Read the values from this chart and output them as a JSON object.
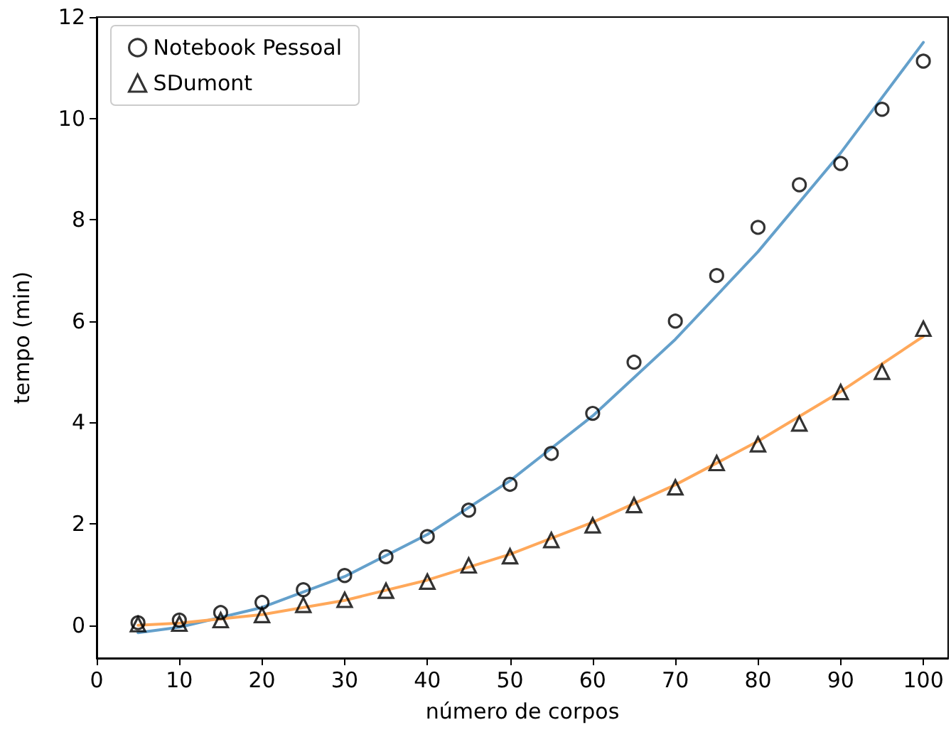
{
  "chart_data": {
    "type": "scatter",
    "xlabel": "número de corpos",
    "ylabel": "tempo (min)",
    "xlim": [
      0,
      103
    ],
    "ylim": [
      -0.65,
      12
    ],
    "xticks": [
      0,
      10,
      20,
      30,
      40,
      50,
      60,
      70,
      80,
      90,
      100
    ],
    "yticks": [
      0,
      2,
      4,
      6,
      8,
      10,
      12
    ],
    "grid": false,
    "legend": "top left",
    "x": [
      5,
      10,
      15,
      20,
      25,
      30,
      35,
      40,
      45,
      50,
      55,
      60,
      65,
      70,
      75,
      80,
      85,
      90,
      95,
      100
    ],
    "series": [
      {
        "name": "Notebook Pessoal",
        "marker": "circle",
        "color": "#000000",
        "values": [
          0.05,
          0.1,
          0.25,
          0.45,
          0.7,
          0.98,
          1.35,
          1.75,
          2.27,
          2.78,
          3.39,
          4.18,
          5.19,
          6.0,
          6.9,
          7.85,
          8.69,
          9.11,
          10.18,
          11.13
        ]
      },
      {
        "name": "SDumont",
        "marker": "triangle",
        "color": "#000000",
        "values": [
          0.02,
          0.03,
          0.1,
          0.2,
          0.4,
          0.5,
          0.68,
          0.86,
          1.18,
          1.36,
          1.68,
          1.97,
          2.37,
          2.72,
          3.2,
          3.57,
          3.98,
          4.6,
          5.0,
          5.85
        ]
      },
      {
        "type": "line",
        "marker": "none",
        "color": "#64a0cb",
        "x": [
          5,
          10,
          20,
          30,
          40,
          50,
          60,
          70,
          80,
          90,
          100
        ],
        "values": [
          -0.15,
          -0.04,
          0.35,
          0.96,
          1.79,
          2.85,
          4.13,
          5.64,
          7.37,
          9.32,
          11.5
        ]
      },
      {
        "type": "line",
        "marker": "none",
        "color": "#ffa85a",
        "x": [
          5,
          10,
          20,
          30,
          40,
          50,
          60,
          70,
          80,
          90,
          100
        ],
        "values": [
          0.0,
          0.04,
          0.21,
          0.49,
          0.89,
          1.4,
          2.03,
          2.77,
          3.63,
          4.61,
          5.7
        ]
      }
    ]
  }
}
